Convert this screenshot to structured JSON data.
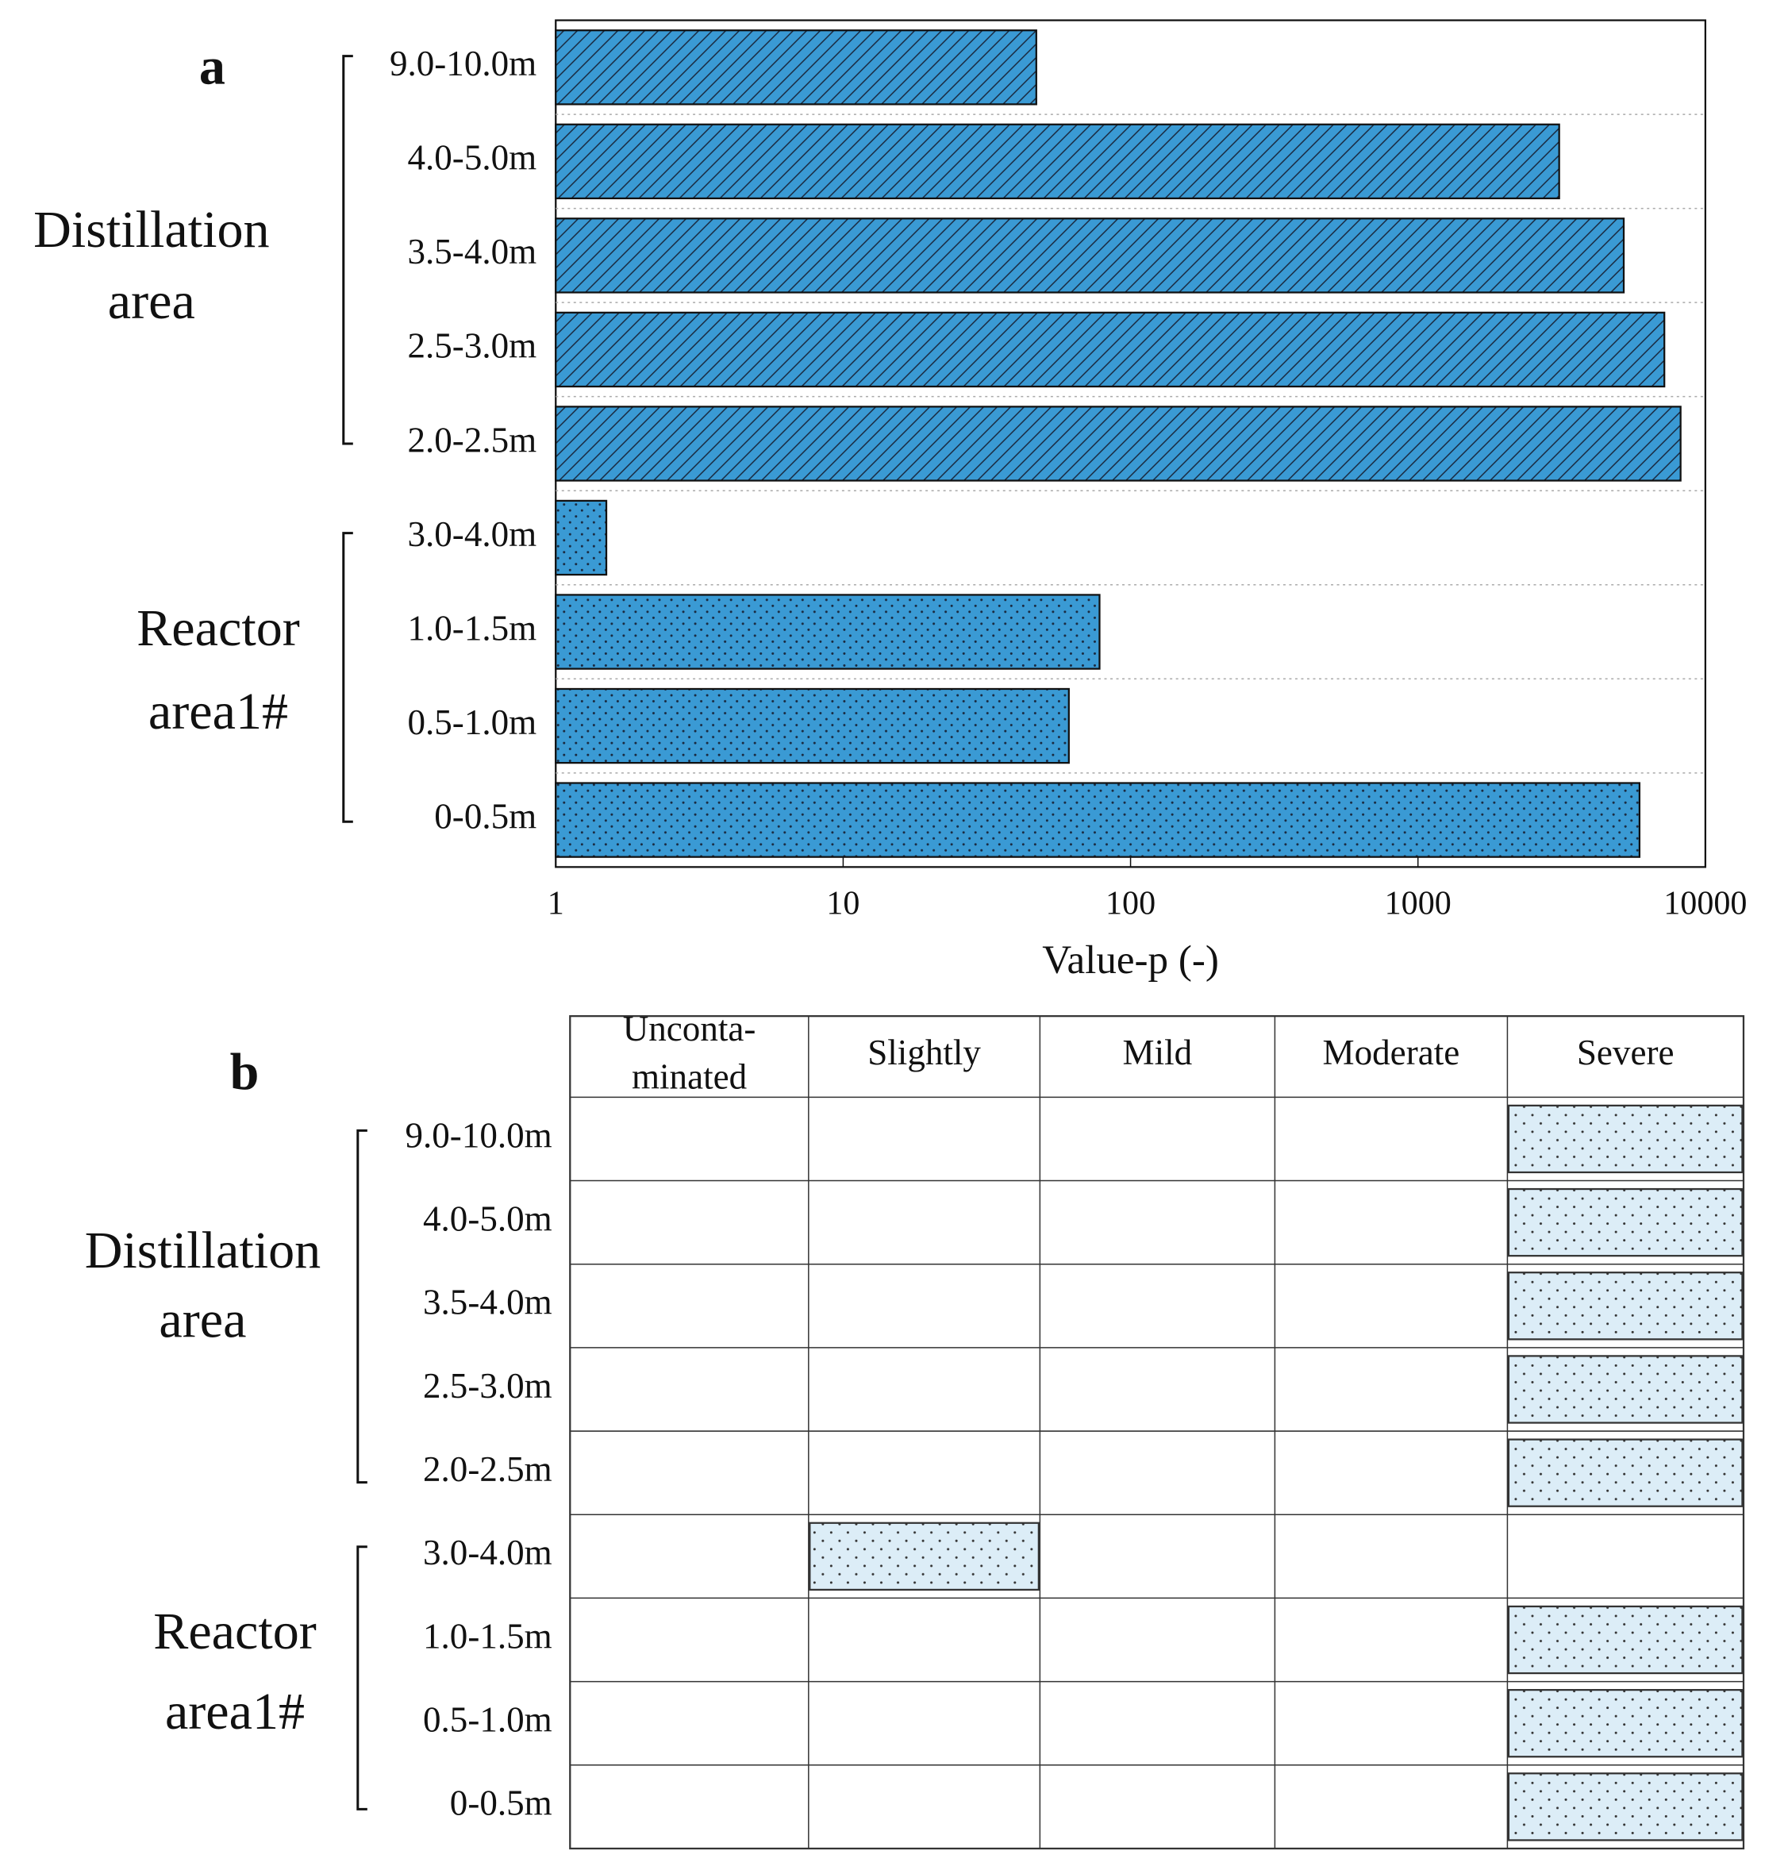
{
  "chart_data": [
    {
      "type": "barh",
      "panel": "a",
      "x_label": "Value-p (-)",
      "log_x": true,
      "xlim": [
        1,
        10000
      ],
      "xticks": [
        1,
        10,
        100,
        1000,
        10000
      ],
      "grid": true,
      "groups": [
        "Distillation area",
        "Reactor area1#"
      ],
      "categories": [
        "9.0-10.0m",
        "4.0-5.0m",
        "3.5-4.0m",
        "2.5-3.0m",
        "2.0-2.5m",
        "3.0-4.0m",
        "1.0-1.5m",
        "0.5-1.0m",
        "0-0.5m"
      ],
      "values": [
        47,
        3100,
        5200,
        7200,
        8200,
        1.5,
        78,
        61,
        5900
      ],
      "color": "#3a9ad4"
    },
    {
      "type": "grade",
      "panel": "b",
      "color": "#dcedf7",
      "classes": [
        "Unconta-\nminated",
        "Slightly",
        "Mild",
        "Moderate",
        "Severe"
      ],
      "groups": [
        "Distillation area",
        "Reactor area1#"
      ],
      "categories": [
        "9.0-10.0m",
        "4.0-5.0m",
        "3.5-4.0m",
        "2.5-3.0m",
        "2.0-2.5m",
        "3.0-4.0m",
        "1.0-1.5m",
        "0.5-1.0m",
        "0-0.5m"
      ],
      "grades": [
        "Severe",
        "Severe",
        "Severe",
        "Severe",
        "Severe",
        "Slightly",
        "Severe",
        "Severe",
        "Severe"
      ]
    }
  ]
}
